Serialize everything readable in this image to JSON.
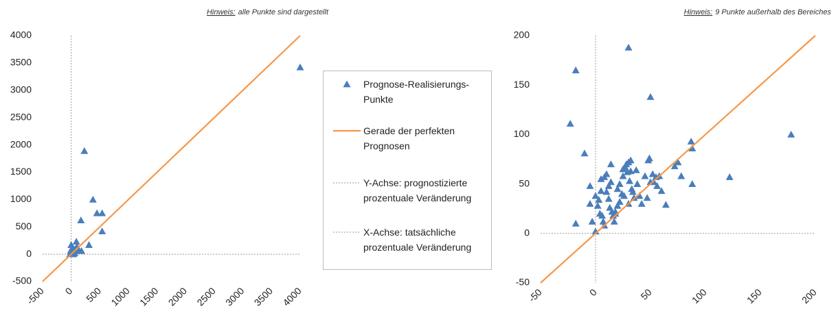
{
  "chart_data": [
    {
      "type": "scatter",
      "note_label": "Hinweis:",
      "note": "alle Punkte sind dargestellt",
      "xlim": [
        -500,
        4000
      ],
      "ylim": [
        -500,
        4000
      ],
      "xticks": [
        -500,
        0,
        500,
        1000,
        1500,
        2000,
        2500,
        3000,
        3500,
        4000
      ],
      "yticks": [
        -500,
        0,
        500,
        1000,
        1500,
        2000,
        2500,
        3000,
        3500,
        4000
      ],
      "series": [
        {
          "name": "Prognose-Realisierungs-Punkte",
          "marker": "triangle",
          "color": "#4a7ebb",
          "x": [
            4000,
            230,
            380,
            450,
            540,
            170,
            540,
            310,
            90,
            0,
            20,
            50,
            -10,
            30,
            80,
            10,
            60,
            130,
            100,
            180,
            -20,
            40
          ],
          "values": [
            3420,
            1890,
            1000,
            750,
            750,
            620,
            420,
            170,
            230,
            170,
            120,
            90,
            60,
            40,
            60,
            10,
            20,
            80,
            140,
            60,
            0,
            0
          ]
        },
        {
          "name": "Gerade der perfekten Prognosen",
          "marker": "line",
          "color": "#f79646",
          "x": [
            -500,
            4000
          ],
          "values": [
            -500,
            4000
          ]
        }
      ],
      "axis_legend": [
        {
          "name": "Y-Achse: prognostizierte prozentuale Veränderung",
          "color": "#999999"
        },
        {
          "name": "X-Achse: tatsächliche prozentuale Veränderung",
          "color": "#999999"
        }
      ]
    },
    {
      "type": "scatter",
      "note_label": "Hinweis:",
      "note": "9 Punkte außerhalb des Bereiches",
      "xlim": [
        -50,
        200
      ],
      "ylim": [
        -50,
        200
      ],
      "xticks": [
        -50,
        0,
        50,
        100,
        150,
        200
      ],
      "yticks": [
        -50,
        0,
        50,
        100,
        150,
        200
      ],
      "series": [
        {
          "marker": "triangle",
          "color": "#4a7ebb",
          "x": [
            30,
            -18,
            50,
            -23,
            178,
            -10,
            87,
            88,
            122,
            88,
            -18,
            -5,
            0,
            3,
            2,
            5,
            5,
            8,
            10,
            4,
            6,
            7,
            8,
            10,
            12,
            14,
            14,
            13,
            15,
            16,
            17,
            18,
            20,
            20,
            22,
            22,
            24,
            25,
            26,
            27,
            28,
            29,
            30,
            31,
            32,
            32,
            33,
            34,
            35,
            37,
            38,
            40,
            42,
            45,
            47,
            48,
            49,
            50,
            52,
            53,
            55,
            56,
            58,
            60,
            64,
            72,
            75,
            78,
            -3,
            -5,
            0,
            12,
            18,
            25,
            30
          ],
          "values": [
            188,
            165,
            138,
            111,
            100,
            81,
            93,
            86,
            57,
            50,
            10,
            48,
            2,
            34,
            28,
            43,
            55,
            57,
            60,
            20,
            18,
            12,
            8,
            42,
            48,
            70,
            52,
            26,
            22,
            18,
            12,
            20,
            28,
            45,
            50,
            32,
            40,
            65,
            38,
            67,
            70,
            62,
            72,
            53,
            74,
            63,
            45,
            42,
            36,
            64,
            50,
            38,
            30,
            58,
            36,
            74,
            76,
            52,
            60,
            52,
            57,
            48,
            58,
            43,
            29,
            68,
            72,
            58,
            12,
            30,
            38,
            35,
            22,
            58,
            30
          ]
        },
        {
          "marker": "line",
          "color": "#f79646",
          "x": [
            -50,
            200
          ],
          "values": [
            -50,
            200
          ]
        }
      ]
    }
  ]
}
